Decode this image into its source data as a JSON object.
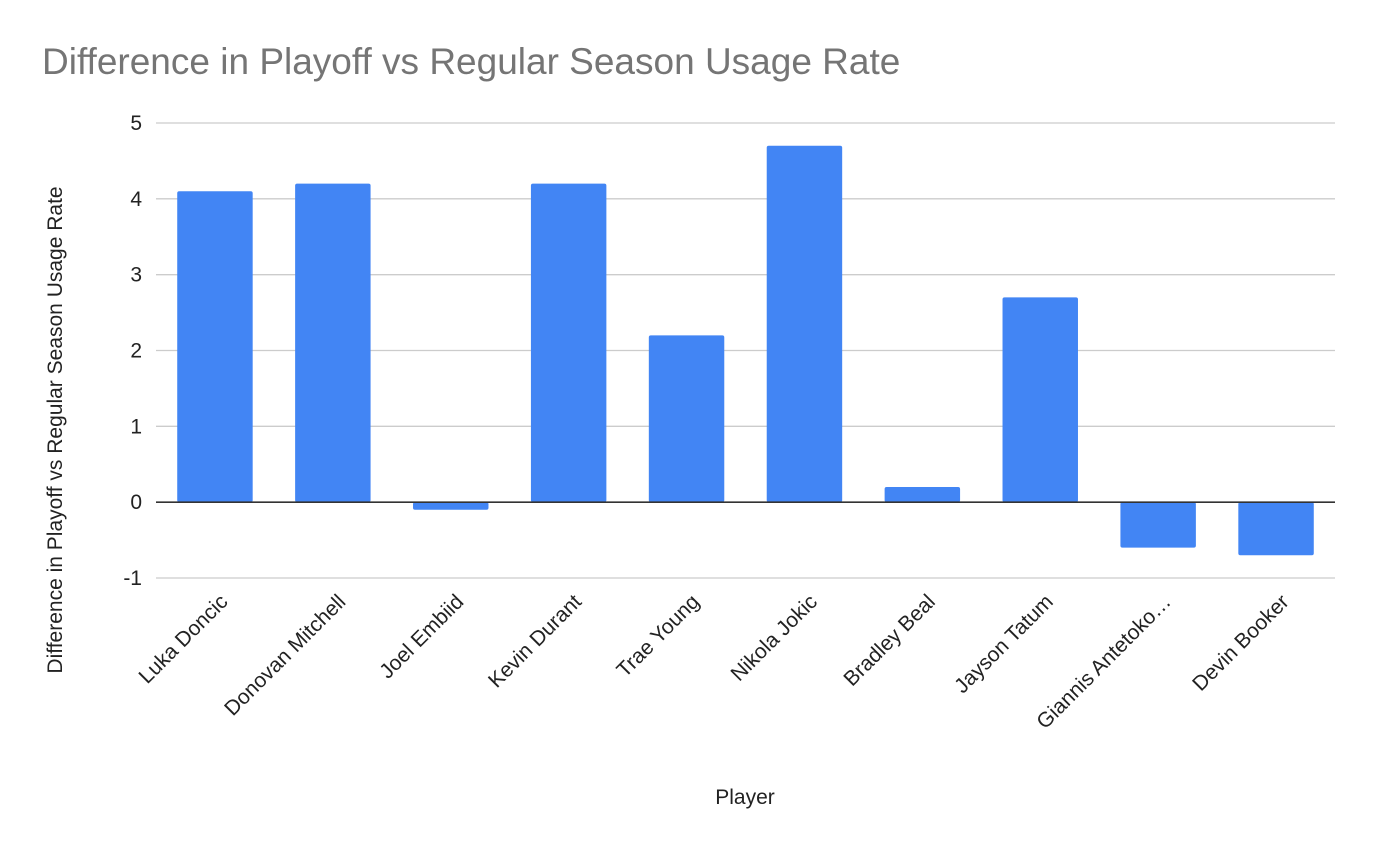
{
  "chart_data": {
    "type": "bar",
    "title": "Difference in Playoff vs Regular Season Usage Rate",
    "xlabel": "Player",
    "ylabel": "Difference in Playoff vs Regular Season Usage Rate",
    "categories": [
      "Luka Doncic",
      "Donovan Mitchell",
      "Joel Embiid",
      "Kevin Durant",
      "Trae Young",
      "Nikola Jokic",
      "Bradley Beal",
      "Jayson Tatum",
      "Giannis Antetoko…",
      "Devin Booker"
    ],
    "values": [
      4.1,
      4.2,
      -0.1,
      4.2,
      2.2,
      4.7,
      0.2,
      2.7,
      -0.6,
      -0.7
    ],
    "ylim": [
      -1,
      5
    ],
    "yticks": [
      "-1",
      "0",
      "1",
      "2",
      "3",
      "4",
      "5"
    ],
    "grid": true,
    "legend": "none",
    "colors": {
      "bar": "#4285f4",
      "title": "#757575",
      "text": "#222222",
      "grid": "#cccccc",
      "zero_line": "#333333"
    }
  }
}
